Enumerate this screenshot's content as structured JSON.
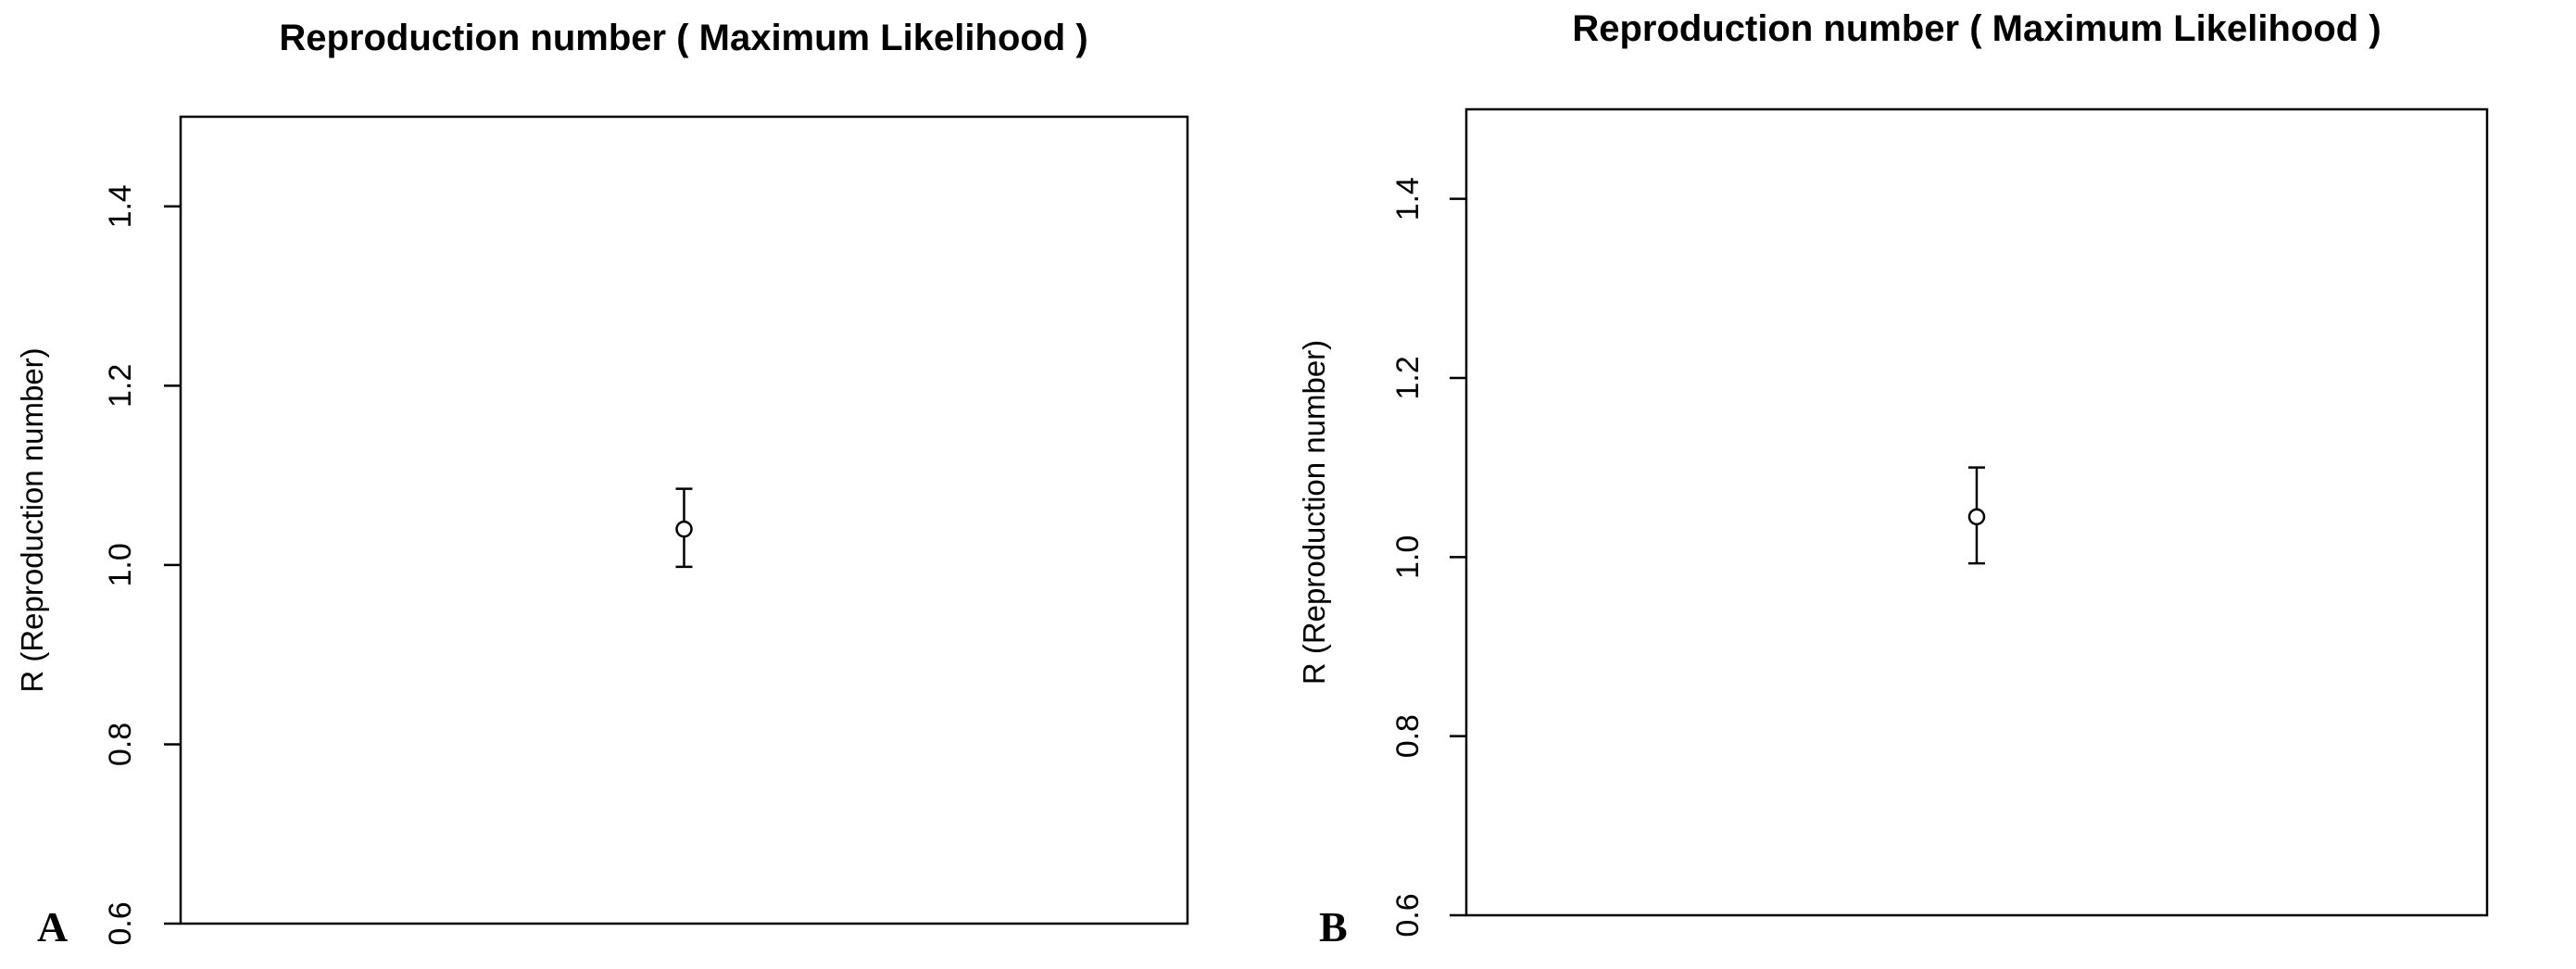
{
  "chart_data": [
    {
      "panel": "A",
      "type": "scatter",
      "title": "Reproduction number ( Maximum Likelihood )",
      "xlabel": "",
      "ylabel": "R (Reproduction number)",
      "ylim": [
        0.6,
        1.5
      ],
      "yticks": [
        "0.6",
        "0.8",
        "1.0",
        "1.2",
        "1.4"
      ],
      "points": [
        {
          "y": 1.04,
          "lower": 0.998,
          "upper": 1.085
        }
      ],
      "grid": false
    },
    {
      "panel": "B",
      "type": "scatter",
      "title": "Reproduction number ( Maximum Likelihood )",
      "xlabel": "",
      "ylabel": "R (Reproduction number)",
      "ylim": [
        0.6,
        1.5
      ],
      "yticks": [
        "0.6",
        "0.8",
        "1.0",
        "1.2",
        "1.4"
      ],
      "points": [
        {
          "y": 1.045,
          "lower": 0.993,
          "upper": 1.1
        }
      ],
      "grid": false
    }
  ]
}
